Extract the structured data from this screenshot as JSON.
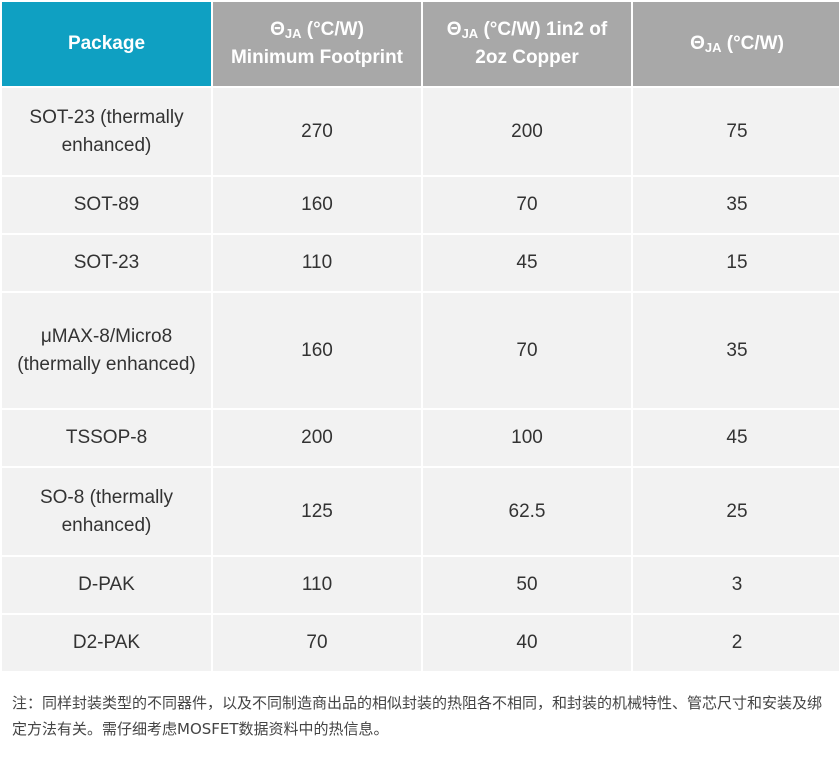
{
  "table": {
    "headers": [
      {
        "prefix": "Θ",
        "sub": "JA",
        "rest": " (°C/W)",
        "line2": "Minimum Footprint"
      },
      {
        "prefix": "Θ",
        "sub": "JA",
        "rest": " (°C/W) 1in2 of",
        "line2": "2oz Copper"
      },
      {
        "prefix": "Θ",
        "sub": "JA",
        "rest": " (°C/W)",
        "line2": ""
      }
    ],
    "package_header": "Package",
    "rows": [
      {
        "package": "SOT-23 (thermally enhanced)",
        "min_footprint": "270",
        "copper_1in2": "200",
        "theta_ja": "75"
      },
      {
        "package": "SOT-89",
        "min_footprint": "160",
        "copper_1in2": "70",
        "theta_ja": "35"
      },
      {
        "package": "SOT-23",
        "min_footprint": "110",
        "copper_1in2": "45",
        "theta_ja": "15"
      },
      {
        "package": "μMAX-8/Micro8 (thermally enhanced)",
        "min_footprint": "160",
        "copper_1in2": "70",
        "theta_ja": "35"
      },
      {
        "package": "TSSOP-8",
        "min_footprint": "200",
        "copper_1in2": "100",
        "theta_ja": "45"
      },
      {
        "package": "SO-8 (thermally enhanced)",
        "min_footprint": "125",
        "copper_1in2": "62.5",
        "theta_ja": "25"
      },
      {
        "package": "D-PAK",
        "min_footprint": "110",
        "copper_1in2": "50",
        "theta_ja": "3"
      },
      {
        "package": "D2-PAK",
        "min_footprint": "70",
        "copper_1in2": "40",
        "theta_ja": "2"
      }
    ]
  },
  "note": "注：同样封装类型的不同器件，以及不同制造商出品的相似封装的热阻各不相同，和封装的机械特性、管芯尺寸和安装及绑定方法有关。需仔细考虑MOSFET数据资料中的热信息。",
  "colors": {
    "header_accent": "#0fa0c2",
    "header_gray": "#a8a8a8",
    "cell_bg": "#f2f2f2",
    "text": "#333333"
  }
}
